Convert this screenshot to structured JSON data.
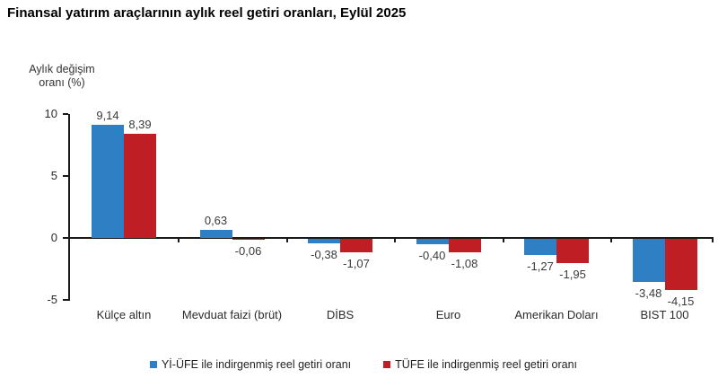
{
  "header": {
    "title": "Finansal yatırım araçlarının aylık reel getiri oranları, Eylül 2025"
  },
  "chart_data": {
    "type": "bar",
    "title": "Finansal yatırım araçlarının aylık reel getiri oranları, Eylül 2025",
    "y_axis": {
      "label_line1": "Aylık değişim",
      "label_line2": "oranı (%)",
      "ticks": [
        10,
        5,
        0,
        -5
      ],
      "tick_labels": [
        "10",
        "5",
        "0",
        "-5"
      ],
      "ylim": [
        -5,
        10
      ]
    },
    "xlabel": "",
    "ylabel": "Aylık değişim oranı (%)",
    "grid": false,
    "legend_position": "bottom",
    "categories": [
      "Külçe altın",
      "Mevduat faizi (brüt)",
      "DİBS",
      "Euro",
      "Amerikan Doları",
      "BIST 100"
    ],
    "series": [
      {
        "name": "Yİ-ÜFE ile indirgenmiş reel getiri oranı",
        "color": "#2e7fc3",
        "values": [
          9.14,
          0.63,
          -0.38,
          -0.4,
          -1.27,
          -3.48
        ],
        "labels": [
          "9,14",
          "0,63",
          "-0,38",
          "-0,40",
          "-1,27",
          "-3,48"
        ]
      },
      {
        "name": "TÜFE ile indirgenmiş reel getiri oranı",
        "color": "#c01e25",
        "values": [
          8.39,
          -0.06,
          -1.07,
          -1.08,
          -1.95,
          -4.15
        ],
        "labels": [
          "8,39",
          "-0,06",
          "-1,07",
          "-1,08",
          "-1,95",
          "-4,15"
        ]
      }
    ]
  }
}
